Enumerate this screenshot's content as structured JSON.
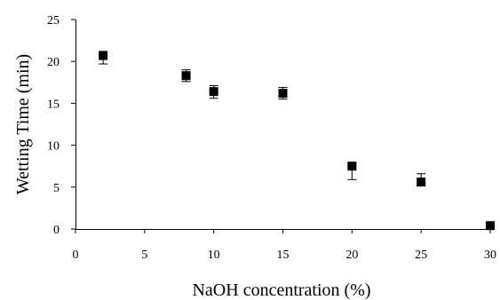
{
  "chart_data": {
    "type": "scatter",
    "title": "",
    "xlabel": "NaOH concentration (%)",
    "ylabel": "Wetting Time  (min)",
    "xlim": [
      0,
      30
    ],
    "ylim": [
      0,
      25
    ],
    "xticks": [
      0,
      5,
      10,
      15,
      20,
      25,
      30
    ],
    "yticks": [
      0,
      5,
      10,
      15,
      20,
      25
    ],
    "grid": false,
    "legend": "none",
    "marker": "square",
    "marker_color": "#000000",
    "series": [
      {
        "x": [
          2,
          8,
          10,
          15,
          20,
          25,
          30
        ],
        "y": [
          20.7,
          18.3,
          16.4,
          16.2,
          7.5,
          5.6,
          0.4
        ],
        "error_plus": [
          0.5,
          0.7,
          0.7,
          0.7,
          0.3,
          1.0,
          0
        ],
        "error_minus": [
          1.0,
          0.7,
          0.8,
          0.7,
          1.6,
          0.4,
          0
        ]
      }
    ]
  }
}
